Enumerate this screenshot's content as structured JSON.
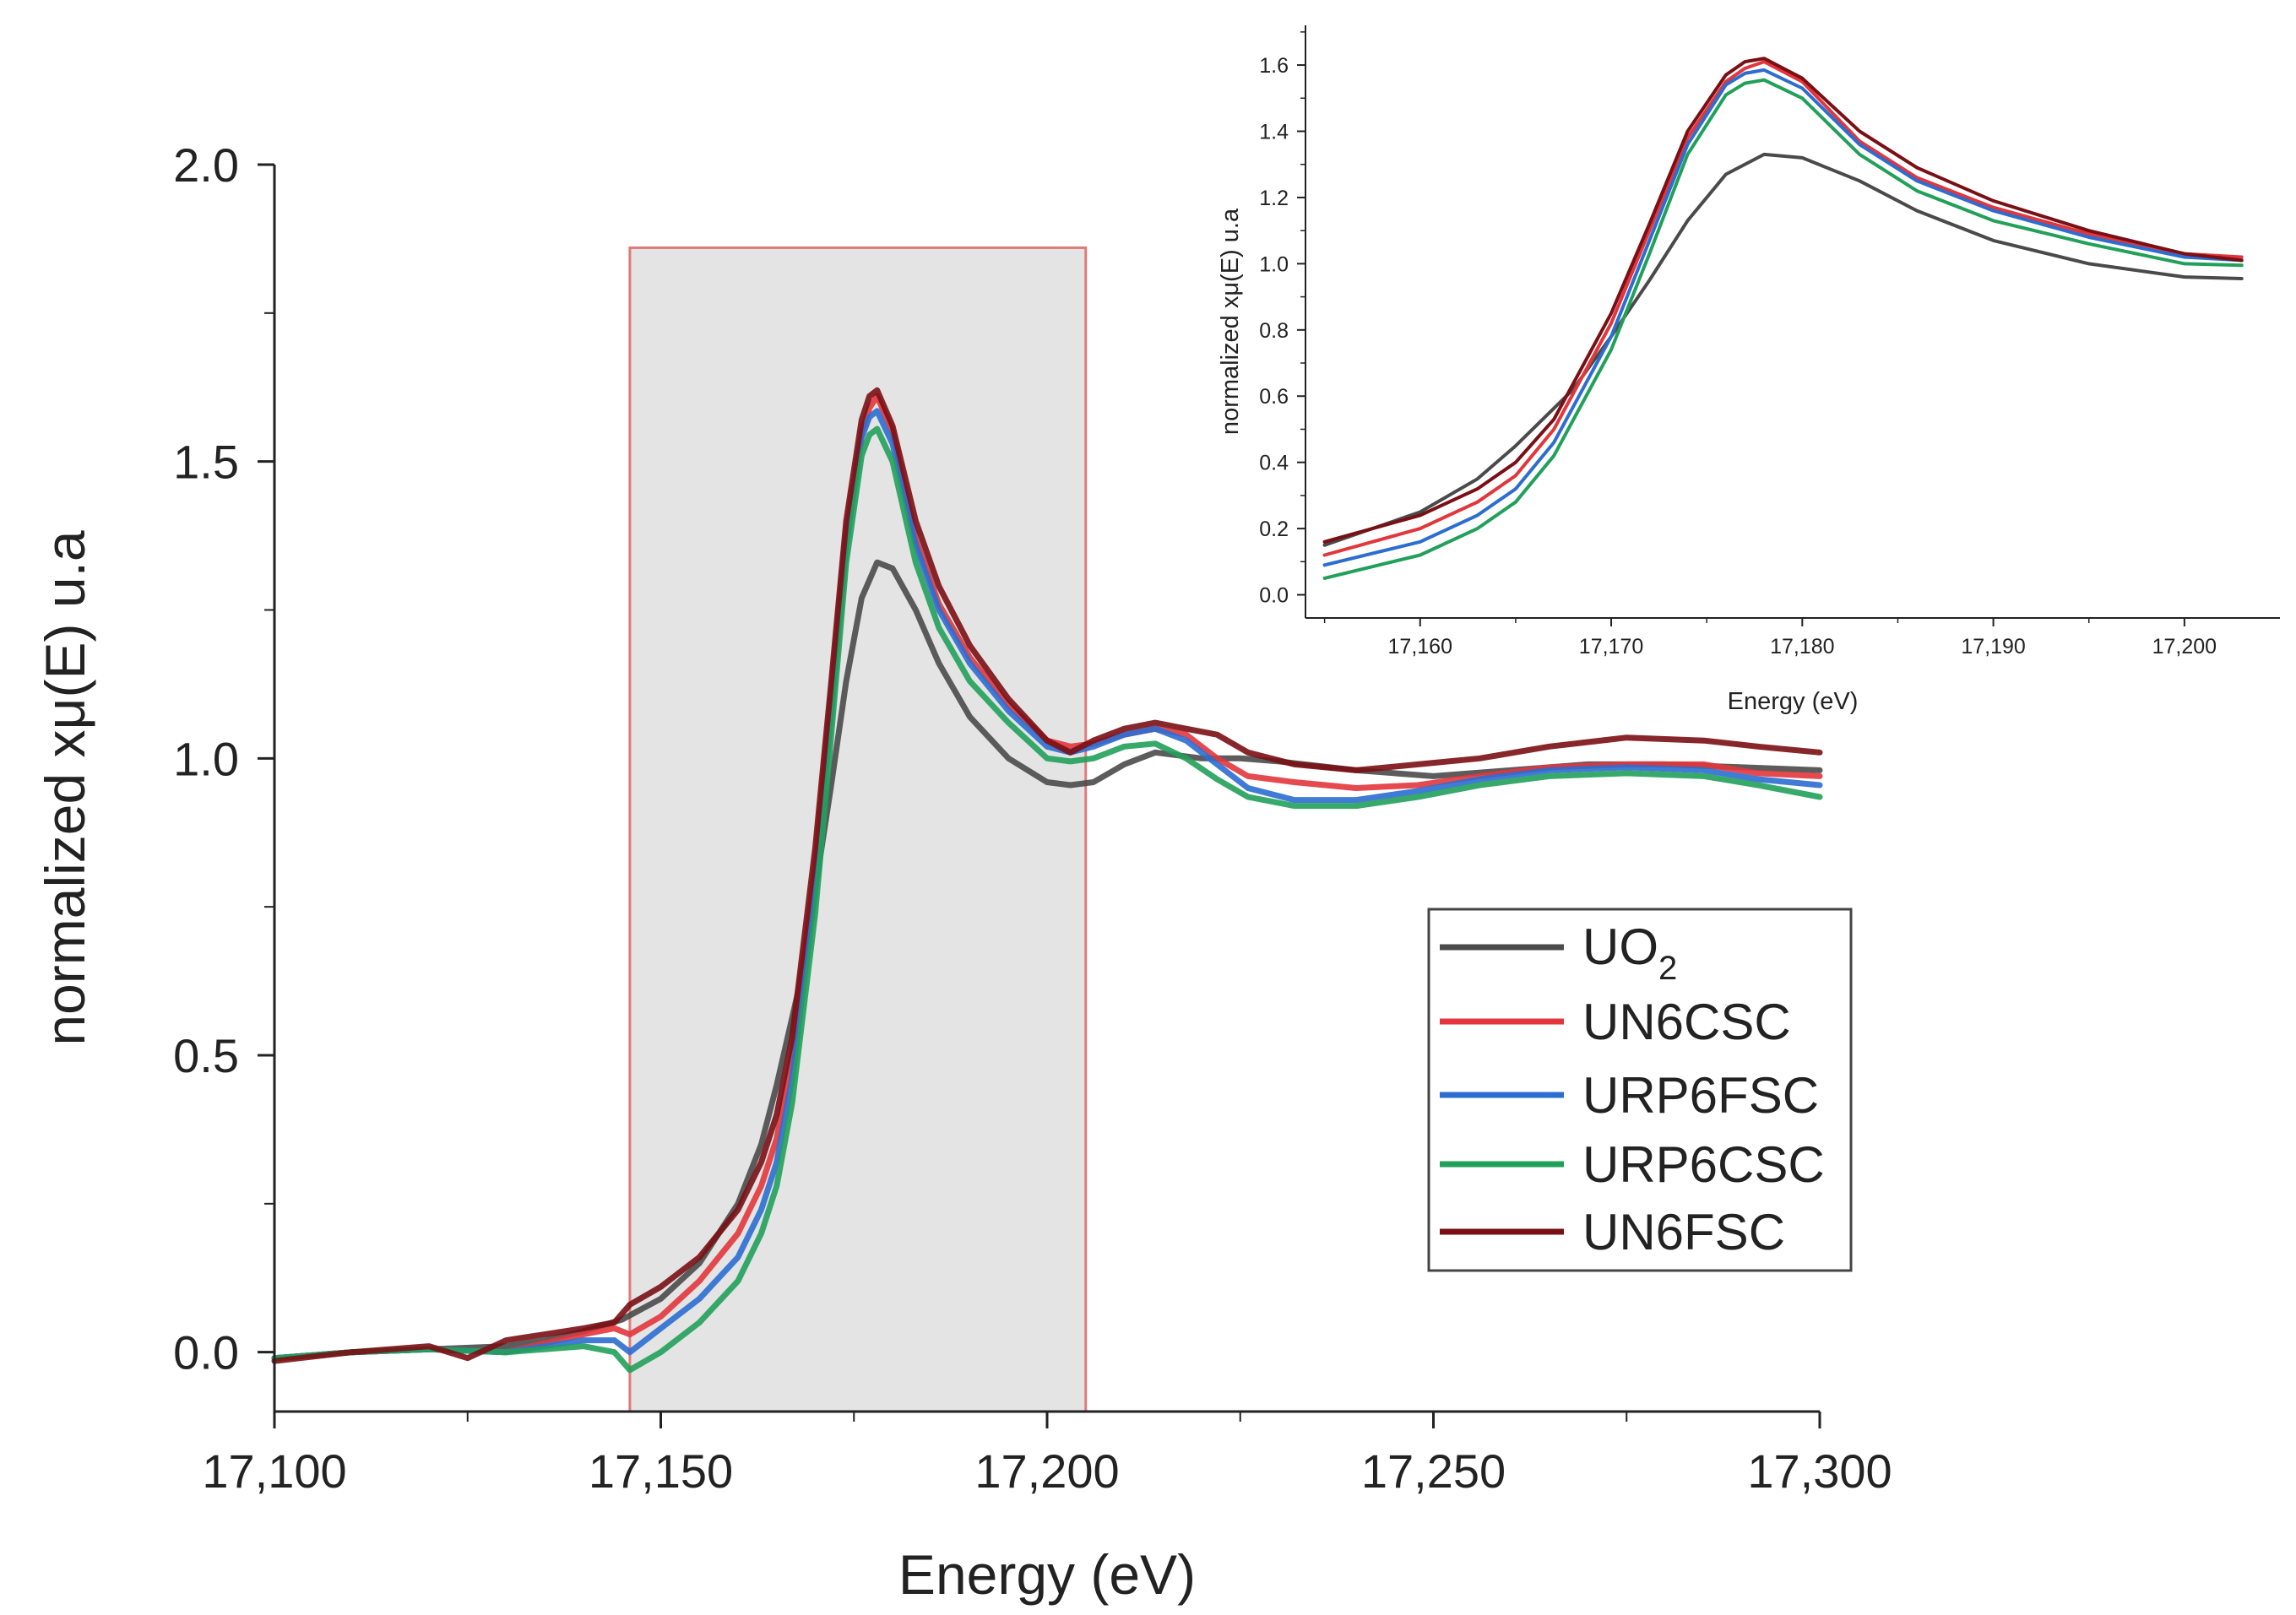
{
  "chart_data": [
    {
      "type": "line",
      "title": "",
      "xlabel": "Energy (eV)",
      "ylabel": "normalized xμ(E) u.a",
      "xlim": [
        17100,
        17300
      ],
      "ylim": [
        -0.1,
        2.0
      ],
      "x_ticks": [
        "17,100",
        "17,150",
        "17,200",
        "17,250",
        "17,300"
      ],
      "y_ticks": [
        "0.0",
        "0.5",
        "1.0",
        "1.5",
        "2.0"
      ],
      "grid": false,
      "legend_position": "right",
      "highlight_region": {
        "x": [
          17146,
          17205
        ],
        "y": [
          -0.1,
          1.86
        ],
        "label": ""
      },
      "series": [
        {
          "name": "UO2",
          "label_main": "UO",
          "label_sub": "2",
          "color": "#4a4a4a",
          "x": [
            17100,
            17110,
            17120,
            17130,
            17135,
            17140,
            17145,
            17150,
            17155,
            17160,
            17163,
            17165,
            17168,
            17170,
            17172,
            17174,
            17176,
            17178,
            17180,
            17183,
            17186,
            17190,
            17195,
            17200,
            17203,
            17206,
            17210,
            17214,
            17220,
            17225,
            17230,
            17240,
            17250,
            17260,
            17270,
            17280,
            17290,
            17300
          ],
          "y": [
            -0.01,
            0.0,
            0.005,
            0.01,
            0.02,
            0.035,
            0.055,
            0.09,
            0.15,
            0.25,
            0.35,
            0.45,
            0.62,
            0.78,
            0.95,
            1.13,
            1.27,
            1.33,
            1.32,
            1.25,
            1.16,
            1.07,
            1.0,
            0.96,
            0.955,
            0.96,
            0.99,
            1.01,
            1.0,
            1.0,
            0.995,
            0.98,
            0.97,
            0.98,
            0.99,
            0.99,
            0.985,
            0.98
          ]
        },
        {
          "name": "UN6CSC",
          "label_main": "UN6CSC",
          "color": "#e2363c",
          "x": [
            17100,
            17110,
            17120,
            17130,
            17140,
            17144,
            17146,
            17150,
            17155,
            17160,
            17163,
            17165,
            17167,
            17170,
            17172,
            17174,
            17176,
            17177,
            17178,
            17180,
            17183,
            17186,
            17190,
            17195,
            17200,
            17203,
            17206,
            17210,
            17214,
            17218,
            17222,
            17226,
            17232,
            17240,
            17248,
            17256,
            17265,
            17275,
            17285,
            17292,
            17300
          ],
          "y": [
            -0.01,
            0.0,
            0.005,
            0.0,
            0.03,
            0.04,
            0.03,
            0.06,
            0.12,
            0.2,
            0.28,
            0.36,
            0.5,
            0.82,
            1.1,
            1.38,
            1.55,
            1.59,
            1.61,
            1.55,
            1.37,
            1.26,
            1.17,
            1.09,
            1.03,
            1.02,
            1.025,
            1.04,
            1.05,
            1.04,
            1.0,
            0.97,
            0.96,
            0.95,
            0.955,
            0.97,
            0.985,
            0.99,
            0.99,
            0.975,
            0.97
          ]
        },
        {
          "name": "URP6FSC",
          "label_main": "URP6FSC",
          "color": "#2b6dd0",
          "x": [
            17100,
            17110,
            17120,
            17130,
            17140,
            17144,
            17146,
            17150,
            17155,
            17160,
            17163,
            17165,
            17167,
            17170,
            17172,
            17174,
            17176,
            17177,
            17178,
            17180,
            17183,
            17186,
            17190,
            17195,
            17200,
            17203,
            17206,
            17210,
            17214,
            17218,
            17222,
            17226,
            17232,
            17240,
            17248,
            17256,
            17265,
            17275,
            17285,
            17292,
            17300
          ],
          "y": [
            -0.01,
            0.0,
            0.005,
            0.0,
            0.02,
            0.02,
            0.0,
            0.04,
            0.09,
            0.16,
            0.24,
            0.32,
            0.46,
            0.78,
            1.07,
            1.36,
            1.54,
            1.575,
            1.585,
            1.53,
            1.36,
            1.25,
            1.16,
            1.08,
            1.02,
            1.01,
            1.02,
            1.04,
            1.05,
            1.03,
            0.99,
            0.95,
            0.93,
            0.93,
            0.945,
            0.965,
            0.98,
            0.985,
            0.98,
            0.965,
            0.955
          ]
        },
        {
          "name": "URP6CSC",
          "label_main": "URP6CSC",
          "color": "#21a05a",
          "x": [
            17100,
            17110,
            17120,
            17130,
            17140,
            17144,
            17146,
            17150,
            17155,
            17160,
            17163,
            17165,
            17167,
            17170,
            17172,
            17174,
            17176,
            17177,
            17178,
            17180,
            17183,
            17186,
            17190,
            17195,
            17200,
            17203,
            17206,
            17210,
            17214,
            17218,
            17222,
            17226,
            17232,
            17240,
            17248,
            17256,
            17265,
            17275,
            17285,
            17292,
            17300
          ],
          "y": [
            -0.01,
            0.0,
            0.005,
            0.0,
            0.01,
            0.0,
            -0.03,
            0.0,
            0.05,
            0.12,
            0.2,
            0.28,
            0.42,
            0.74,
            1.03,
            1.33,
            1.51,
            1.545,
            1.555,
            1.5,
            1.33,
            1.22,
            1.13,
            1.06,
            1.0,
            0.995,
            1.0,
            1.02,
            1.025,
            1.0,
            0.965,
            0.935,
            0.92,
            0.92,
            0.935,
            0.955,
            0.97,
            0.975,
            0.97,
            0.955,
            0.935
          ]
        },
        {
          "name": "UN6FSC",
          "label_main": "UN6FSC",
          "color": "#7a0f14",
          "x": [
            17100,
            17110,
            17120,
            17125,
            17130,
            17140,
            17144,
            17146,
            17150,
            17155,
            17160,
            17163,
            17165,
            17167,
            17170,
            17172,
            17174,
            17176,
            17177,
            17178,
            17180,
            17183,
            17186,
            17190,
            17195,
            17200,
            17203,
            17206,
            17210,
            17214,
            17218,
            17222,
            17226,
            17232,
            17240,
            17248,
            17256,
            17265,
            17275,
            17285,
            17292,
            17300
          ],
          "y": [
            -0.015,
            0.0,
            0.01,
            -0.01,
            0.02,
            0.04,
            0.05,
            0.08,
            0.11,
            0.16,
            0.24,
            0.32,
            0.4,
            0.53,
            0.85,
            1.12,
            1.4,
            1.57,
            1.61,
            1.62,
            1.56,
            1.4,
            1.29,
            1.19,
            1.1,
            1.03,
            1.01,
            1.03,
            1.05,
            1.06,
            1.05,
            1.04,
            1.01,
            0.99,
            0.98,
            0.99,
            1.0,
            1.02,
            1.035,
            1.03,
            1.02,
            1.01
          ]
        }
      ]
    },
    {
      "type": "line",
      "title": "",
      "xlabel": "Energy (eV)",
      "ylabel": "normalized xμ(E) u.a",
      "xlim": [
        17154,
        17205
      ],
      "ylim": [
        -0.07,
        1.72
      ],
      "x_ticks": [
        "17,160",
        "17,170",
        "17,180",
        "17,190",
        "17,200"
      ],
      "y_ticks": [
        "0.0",
        "0.2",
        "0.4",
        "0.6",
        "0.8",
        "1.0",
        "1.2",
        "1.4",
        "1.6"
      ],
      "grid": false,
      "series_from_main": true
    }
  ],
  "legend": {
    "title": "",
    "entries": [
      "UO2",
      "UN6CSC",
      "URP6FSC",
      "URP6CSC",
      "UN6FSC"
    ]
  }
}
